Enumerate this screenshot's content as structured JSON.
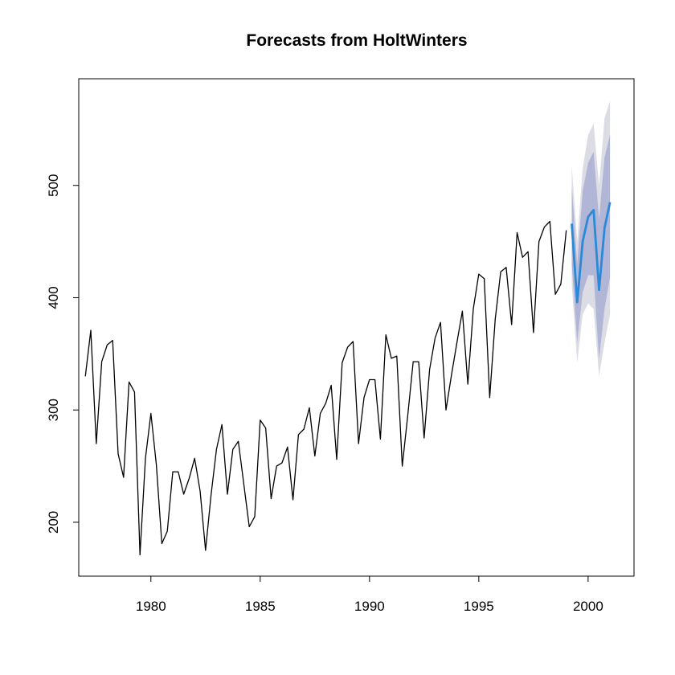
{
  "chart_data": {
    "type": "line",
    "title": "Forecasts from HoltWinters",
    "xlabel": "",
    "ylabel": "",
    "xlim": [
      1976.7,
      2002.1
    ],
    "ylim": [
      152,
      595
    ],
    "x_ticks": [
      1980,
      1985,
      1990,
      1995,
      2000
    ],
    "x_tick_labels": [
      "1980",
      "1985",
      "1990",
      "1995",
      "2000"
    ],
    "y_ticks": [
      200,
      300,
      400,
      500
    ],
    "y_tick_labels": [
      "200",
      "300",
      "400",
      "500"
    ],
    "grid": false,
    "legend": "none",
    "colors": {
      "observed": "#000000",
      "forecast": "#2b8ad8",
      "band80": "#b1b5d6",
      "band95": "#dcdce4"
    },
    "observed": {
      "start": 1977.0,
      "frequency": 4,
      "values": [
        330,
        371,
        270,
        343,
        358,
        362,
        261,
        240,
        325,
        316,
        171,
        257,
        297,
        251,
        181,
        192,
        245,
        245,
        225,
        239,
        257,
        228,
        175,
        224,
        265,
        287,
        225,
        265,
        272,
        234,
        196,
        205,
        291,
        284,
        221,
        250,
        253,
        267,
        220,
        278,
        283,
        302,
        259,
        297,
        306,
        322,
        256,
        342,
        356,
        361,
        270,
        311,
        327,
        327,
        274,
        367,
        346,
        348,
        250,
        295,
        343,
        343,
        275,
        336,
        364,
        378,
        300,
        331,
        360,
        388,
        323,
        390,
        421,
        417,
        311,
        381,
        423,
        427,
        376,
        458,
        436,
        441,
        369,
        450,
        463,
        468,
        403,
        412,
        460
      ]
    },
    "forecast": {
      "start": 1999.25,
      "frequency": 4,
      "mean": [
        466,
        396,
        450,
        472,
        478,
        407,
        462,
        485
      ],
      "lo80": [
        430,
        360,
        405,
        420,
        420,
        345,
        390,
        418
      ],
      "hi80": [
        500,
        430,
        495,
        520,
        530,
        470,
        525,
        545
      ],
      "lo95": [
        412,
        342,
        385,
        395,
        390,
        330,
        360,
        385
      ],
      "hi95": [
        518,
        450,
        515,
        545,
        555,
        500,
        560,
        575
      ]
    }
  }
}
